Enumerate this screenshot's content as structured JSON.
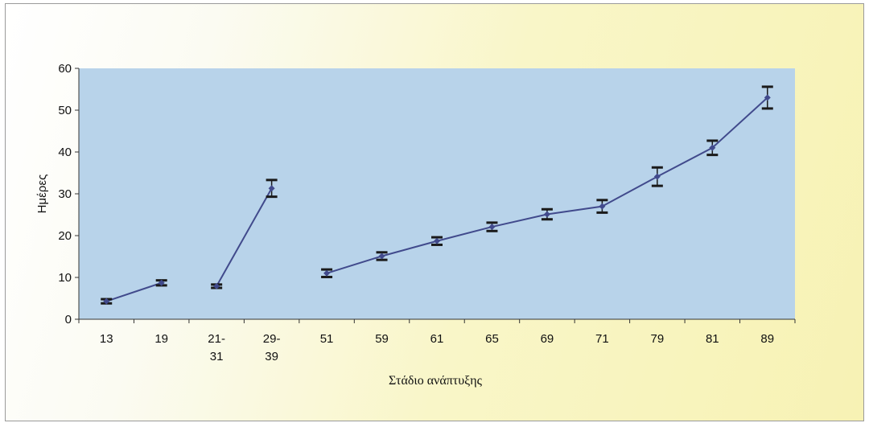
{
  "chart_data": {
    "type": "line",
    "title": "",
    "xlabel": "Στάδιο ανάπτυξης",
    "ylabel": "Ημέρες",
    "ylim": [
      0,
      60
    ],
    "yticks": [
      0,
      10,
      20,
      30,
      40,
      50,
      60
    ],
    "grid": false,
    "categories": [
      [
        "13"
      ],
      [
        "19"
      ],
      [
        "21-",
        "31"
      ],
      [
        "29-",
        "39"
      ],
      [
        "51"
      ],
      [
        "59"
      ],
      [
        "61"
      ],
      [
        "65"
      ],
      [
        "69"
      ],
      [
        "71"
      ],
      [
        "79"
      ],
      [
        "81"
      ],
      [
        "89"
      ]
    ],
    "segments": [
      [
        0,
        1
      ],
      [
        2,
        3
      ],
      [
        4,
        5,
        6,
        7,
        8,
        9,
        10,
        11,
        12
      ]
    ],
    "series": [
      {
        "values": [
          4.3,
          8.7,
          7.9,
          31.3,
          11.0,
          15.1,
          18.7,
          22.1,
          25.1,
          27.0,
          34.1,
          41.0,
          53.0
        ],
        "err": [
          0.5,
          0.6,
          0.4,
          2.0,
          0.9,
          0.9,
          0.9,
          1.0,
          1.2,
          1.5,
          2.2,
          1.7,
          2.6
        ]
      }
    ]
  },
  "colors": {
    "line": "#414a8c",
    "error_bar": "#1a1a1a",
    "plot_bg": "#b8d3ea",
    "axis": "#333333"
  }
}
